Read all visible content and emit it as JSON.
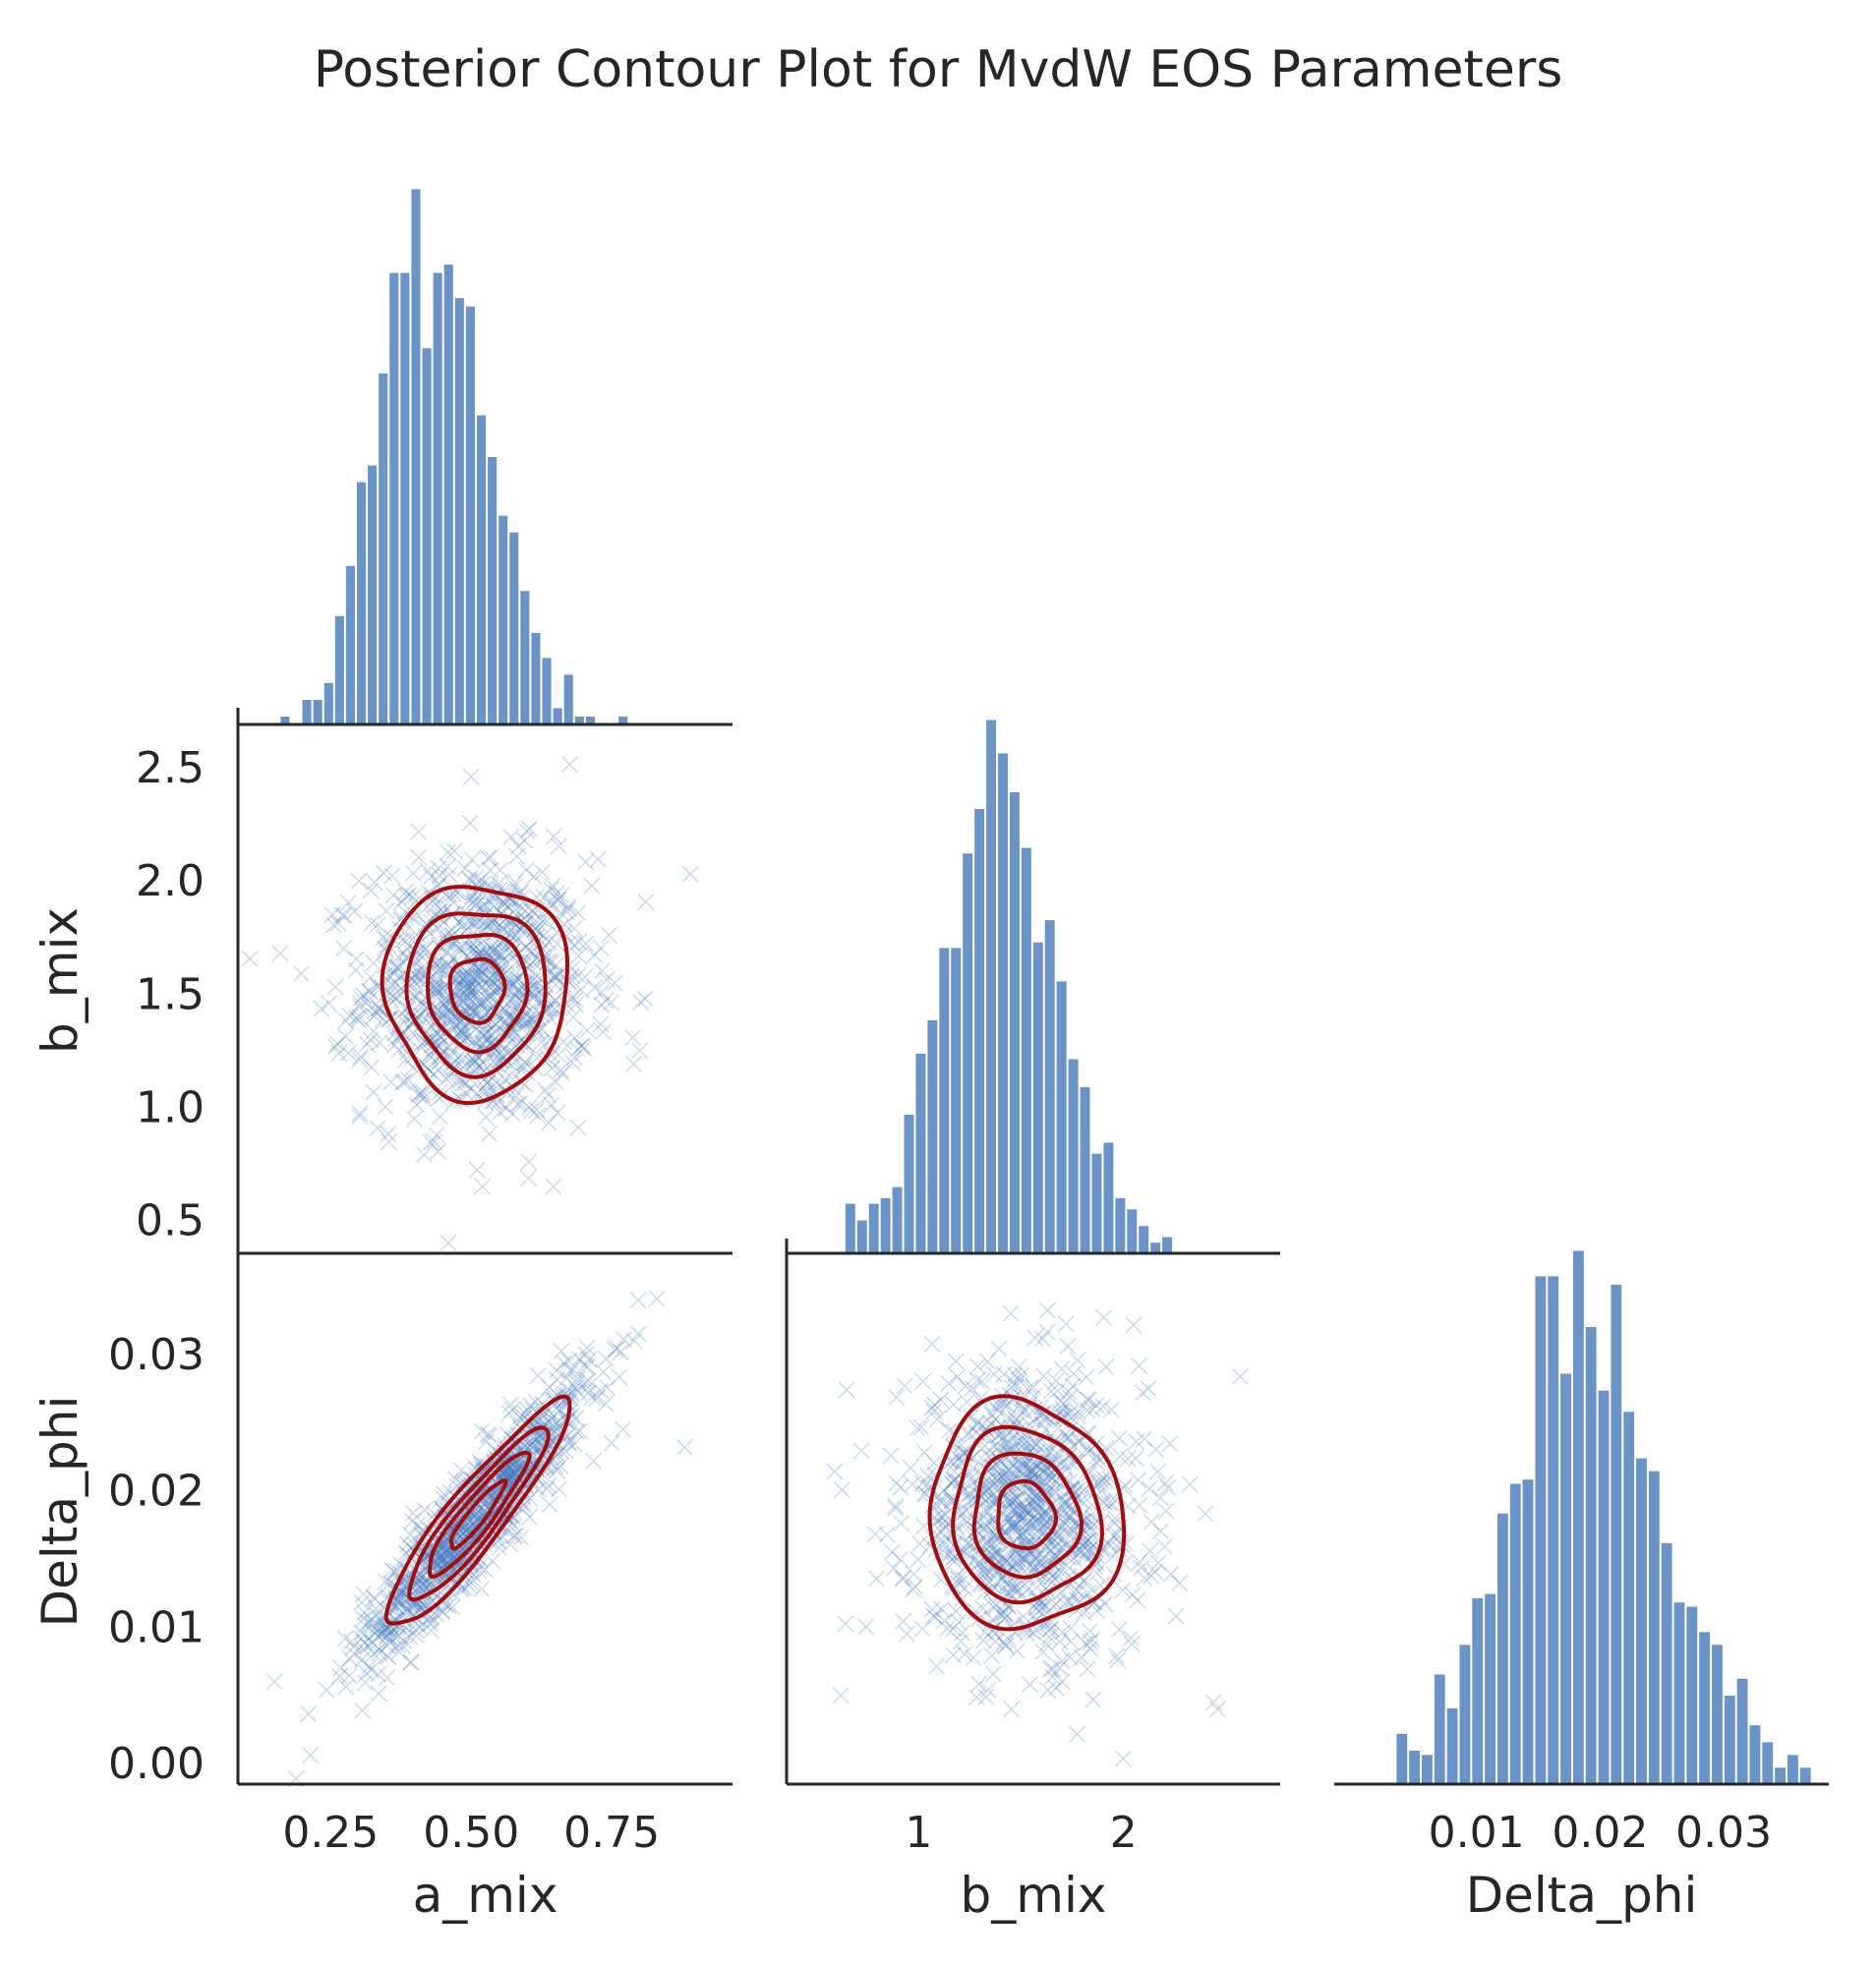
{
  "chart_data": {
    "type": "pairplot",
    "title": "Posterior Contour Plot for MvdW EOS Parameters",
    "variables": [
      "a_mix",
      "b_mix",
      "Delta_phi"
    ],
    "colors": {
      "hist": "#6a93c8",
      "scatter": "#4a7fc1",
      "contour": "#a80a0a",
      "axis": "#262626"
    },
    "ranges": {
      "a_mix": [
        0.085,
        0.965
      ],
      "b_mix": [
        0.355,
        2.765
      ],
      "Delta_phi": [
        -0.0015,
        0.0385
      ]
    },
    "ticks": {
      "a_mix": [
        {
          "value": 0.25,
          "label": "0.25"
        },
        {
          "value": 0.5,
          "label": "0.50"
        },
        {
          "value": 0.75,
          "label": "0.75"
        }
      ],
      "b_mix_x": [
        {
          "value": 1,
          "label": "1"
        },
        {
          "value": 2,
          "label": "2"
        }
      ],
      "b_mix_y": [
        {
          "value": 0.5,
          "label": "0.5"
        },
        {
          "value": 1.0,
          "label": "1.0"
        },
        {
          "value": 1.5,
          "label": "1.5"
        },
        {
          "value": 2.0,
          "label": "2.0"
        },
        {
          "value": 2.5,
          "label": "2.5"
        }
      ],
      "Delta_phi_x": [
        {
          "value": 0.01,
          "label": "0.01"
        },
        {
          "value": 0.02,
          "label": "0.02"
        },
        {
          "value": 0.03,
          "label": "0.03"
        }
      ],
      "Delta_phi_y": [
        {
          "value": 0.0,
          "label": "0.00"
        },
        {
          "value": 0.01,
          "label": "0.01"
        },
        {
          "value": 0.02,
          "label": "0.02"
        },
        {
          "value": 0.03,
          "label": "0.03"
        }
      ]
    },
    "histograms": [
      {
        "variable": "a_mix",
        "bin_start": 0.16,
        "bin_width": 0.0194,
        "counts": [
          2,
          0,
          6,
          6,
          10,
          26,
          38,
          58,
          62,
          84,
          108,
          108,
          128,
          90,
          108,
          110,
          102,
          100,
          74,
          64,
          50,
          46,
          32,
          22,
          16,
          4,
          12,
          2,
          2,
          0,
          0,
          2,
          0
        ],
        "max_count": 128
      },
      {
        "variable": "b_mix",
        "bin_start": 0.64,
        "bin_width": 0.0573,
        "counts": [
          9,
          6,
          9,
          10,
          12,
          25,
          36,
          42,
          55,
          55,
          72,
          80,
          96,
          90,
          83,
          73,
          56,
          60,
          49,
          35,
          30,
          18,
          20,
          10,
          8,
          5,
          2,
          3
        ],
        "max_count": 96
      },
      {
        "variable": "Delta_phi",
        "bin_start": 0.0035,
        "bin_width": 0.00102,
        "counts": [
          12,
          8,
          7,
          26,
          18,
          33,
          44,
          45,
          64,
          71,
          72,
          120,
          120,
          97,
          126,
          108,
          93,
          118,
          88,
          77,
          74,
          57,
          43,
          42,
          36,
          33,
          21,
          25,
          14,
          10,
          4,
          7,
          4
        ],
        "max_count": 126
      }
    ],
    "scatter_panels": [
      {
        "x": "a_mix",
        "y": "b_mix",
        "n_points": 1000,
        "mean": [
          0.51,
          1.52
        ],
        "sd": [
          0.1,
          0.29
        ],
        "corr": 0.0,
        "outliers": [
          [
            0.89,
            2.03
          ],
          [
            0.16,
            1.68
          ],
          [
            0.8,
            1.25
          ],
          [
            0.52,
            0.65
          ],
          [
            0.5,
            2.46
          ]
        ],
        "contour_levels": [
          0.1,
          0.3,
          0.5,
          0.7
        ]
      },
      {
        "x": "a_mix",
        "y": "Delta_phi",
        "n_points": 1000,
        "mean": [
          0.51,
          0.0182
        ],
        "sd": [
          0.1,
          0.0051
        ],
        "corr": 0.92,
        "outliers": [
          [
            0.88,
            0.0232
          ],
          [
            0.15,
            0.006
          ],
          [
            0.79,
            0.031
          ],
          [
            0.77,
            0.0245
          ],
          [
            0.75,
            0.0235
          ]
        ],
        "contour_levels": [
          0.1,
          0.3,
          0.5,
          0.7
        ]
      },
      {
        "x": "b_mix",
        "y": "Delta_phi",
        "n_points": 1000,
        "mean": [
          1.52,
          0.0182
        ],
        "sd": [
          0.29,
          0.0051
        ],
        "corr": -0.05,
        "outliers": [
          [
            2.44,
            0.0045
          ],
          [
            2.46,
            0.004
          ],
          [
            0.62,
            0.005
          ],
          [
            1.7,
            0.006
          ],
          [
            1.45,
            0.033
          ]
        ],
        "contour_levels": [
          0.1,
          0.3,
          0.5,
          0.7
        ]
      }
    ]
  }
}
